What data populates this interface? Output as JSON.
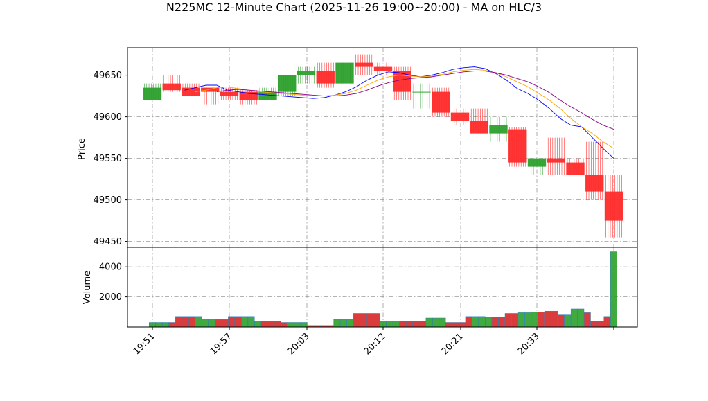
{
  "chart_data": {
    "type": "candlestick",
    "title": "N225MC 12-Minute Chart (2025-11-26 19:00~20:00) - MA on HLC/3",
    "price_panel": {
      "ylabel": "Price",
      "ylim": [
        49443,
        49683
      ],
      "yticks": [
        49450,
        49500,
        49550,
        49600,
        49650
      ],
      "grid": true
    },
    "volume_panel": {
      "ylabel": "Volume",
      "ylim": [
        0,
        5300
      ],
      "yticks": [
        2000,
        4000
      ],
      "grid": true
    },
    "x_ticks": [
      "19:51",
      "19:57",
      "20:03",
      "20:12",
      "20:21",
      "20:33"
    ],
    "x_tick_index": [
      0,
      3,
      6,
      9,
      12,
      15
    ],
    "colors": {
      "up": "#2ca02c",
      "down": "#ff2b2b",
      "ma_fast": "#0000ff",
      "ma_slow": "#ffa500",
      "ma_long": "#8b008b",
      "volume_edge": "#1f77b4",
      "volume_up_fill": "#2ca02c",
      "volume_down_fill": "#d62728"
    },
    "candles": [
      {
        "open": 49620,
        "high": 49640,
        "low": 49620,
        "close": 49635,
        "volume": 300
      },
      {
        "open": 49640,
        "high": 49650,
        "low": 49630,
        "close": 49632,
        "volume": 700
      },
      {
        "open": 49635,
        "high": 49640,
        "low": 49625,
        "close": 49625,
        "volume": 500
      },
      {
        "open": 49635,
        "high": 49635,
        "low": 49615,
        "close": 49630,
        "volume": 700
      },
      {
        "open": 49630,
        "high": 49635,
        "low": 49620,
        "close": 49625,
        "volume": 400
      },
      {
        "open": 49630,
        "high": 49632,
        "low": 49615,
        "close": 49620,
        "volume": 300
      },
      {
        "open": 49620,
        "high": 49635,
        "low": 49620,
        "close": 49630,
        "volume": 100
      },
      {
        "open": 49630,
        "high": 49650,
        "low": 49625,
        "close": 49650,
        "volume": 500
      },
      {
        "open": 49650,
        "high": 49660,
        "low": 49640,
        "close": 49655,
        "volume": 900
      },
      {
        "open": 49655,
        "high": 49665,
        "low": 49635,
        "close": 49640,
        "volume": 400
      },
      {
        "open": 49640,
        "high": 49665,
        "low": 49640,
        "close": 49665,
        "volume": 400
      },
      {
        "open": 49665,
        "high": 49675,
        "low": 49650,
        "close": 49660,
        "volume": 600
      },
      {
        "open": 49660,
        "high": 49665,
        "low": 49650,
        "close": 49655,
        "volume": 300
      },
      {
        "open": 49655,
        "high": 49660,
        "low": 49620,
        "close": 49630,
        "volume": 700
      },
      {
        "open": 49630,
        "high": 49640,
        "low": 49610,
        "close": 49630,
        "volume": 650
      },
      {
        "open": 49630,
        "high": 49635,
        "low": 49600,
        "close": 49605,
        "volume": 900
      },
      {
        "open": 49605,
        "high": 49610,
        "low": 49590,
        "close": 49595,
        "volume": 950
      },
      {
        "open": 49595,
        "high": 49610,
        "low": 49580,
        "close": 49580,
        "volume": 1000
      },
      {
        "open": 49580,
        "high": 49600,
        "low": 49570,
        "close": 49590,
        "volume": 1050
      },
      {
        "open": 49585,
        "high": 49588,
        "low": 49540,
        "close": 49545,
        "volume": 800
      },
      {
        "open": 49540,
        "high": 49550,
        "low": 49530,
        "close": 49550,
        "volume": 1200
      },
      {
        "open": 49550,
        "high": 49575,
        "low": 49530,
        "close": 49545,
        "volume": 950
      },
      {
        "open": 49545,
        "high": 49550,
        "low": 49530,
        "close": 49530,
        "volume": 400
      },
      {
        "open": 49530,
        "high": 49570,
        "low": 49500,
        "close": 49510,
        "volume": 700
      },
      {
        "open": 49510,
        "high": 49530,
        "low": 49455,
        "close": 49475,
        "volume": 5000
      }
    ],
    "ma_lines": [
      {
        "color": "#0000ff",
        "values": [
          null,
          null,
          null,
          49632,
          49635,
          49638,
          49638,
          49632,
          49630,
          49628,
          49627,
          49626,
          49625,
          49624,
          49623,
          49622,
          49623,
          49626,
          49630,
          49636,
          49644,
          49650,
          49654,
          49653,
          49650,
          49648,
          49650,
          49653,
          49657,
          49659,
          49660,
          49658,
          49652,
          49644,
          49634,
          49628,
          49620,
          49610,
          49598,
          49590,
          49588,
          49575,
          49562,
          49550
        ]
      },
      {
        "color": "#ffa500",
        "values": [
          null,
          null,
          null,
          null,
          49630,
          49632,
          49635,
          49636,
          49634,
          49632,
          49630,
          49629,
          49628,
          49627,
          49626,
          49625,
          49625,
          49626,
          49628,
          49632,
          49638,
          49644,
          49648,
          49650,
          49649,
          49648,
          49649,
          49651,
          49654,
          49656,
          49657,
          49656,
          49653,
          49648,
          49642,
          49636,
          49628,
          49620,
          49610,
          49598,
          49588,
          49580,
          49570,
          49562
        ]
      },
      {
        "color": "#8b008b",
        "values": [
          null,
          null,
          null,
          null,
          null,
          null,
          49630,
          49632,
          49633,
          49632,
          49631,
          49630,
          49629,
          49628,
          49627,
          49626,
          49625,
          49625,
          49626,
          49628,
          49632,
          49637,
          49641,
          49644,
          49646,
          49647,
          49648,
          49650,
          49652,
          49654,
          49655,
          49655,
          49653,
          49650,
          49646,
          49642,
          49636,
          49629,
          49620,
          49612,
          49605,
          49597,
          49590,
          49585
        ]
      }
    ],
    "volume_bars": [
      300,
      300,
      300,
      300,
      700,
      700,
      700,
      700,
      500,
      500,
      500,
      500,
      700,
      700,
      700,
      700,
      400,
      400,
      400,
      400,
      300,
      300,
      300,
      300,
      100,
      100,
      100,
      100,
      500,
      500,
      500,
      900,
      900,
      900,
      900,
      400,
      400,
      400,
      400,
      400,
      400,
      400,
      600,
      600,
      600,
      300,
      300,
      300,
      700,
      700,
      700,
      650,
      650,
      650,
      900,
      900,
      950,
      950,
      1000,
      1000,
      1050,
      1050,
      800,
      800,
      1200,
      1200,
      950,
      400,
      400,
      700,
      5000
    ]
  }
}
